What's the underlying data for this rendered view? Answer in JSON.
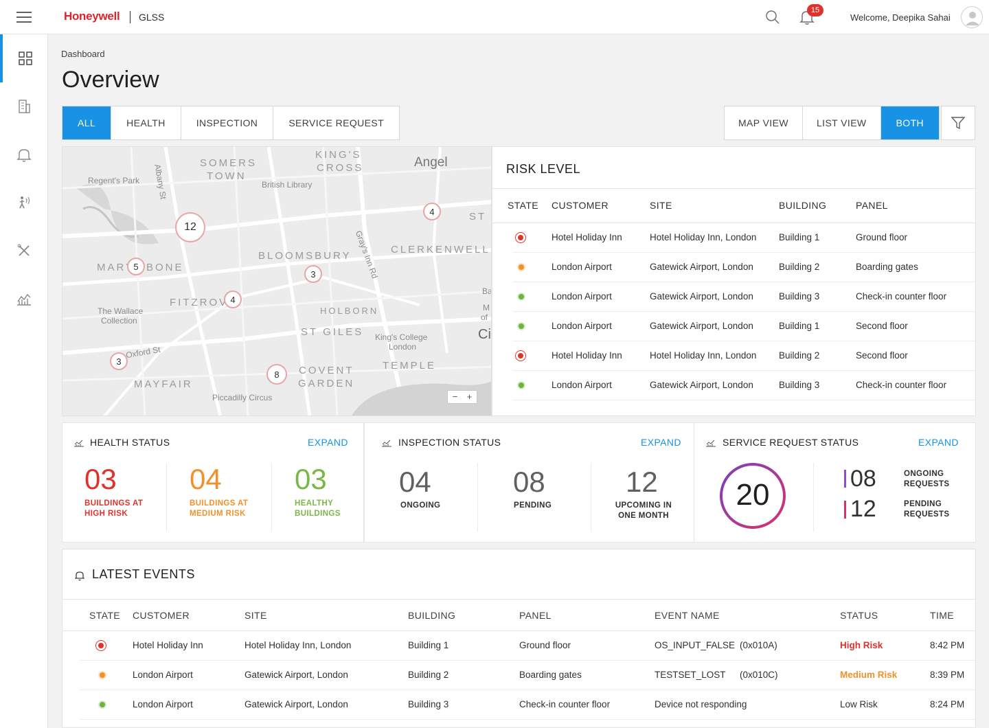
{
  "header": {
    "brand": "Honeywell",
    "app_name": "GLSS",
    "notification_count": "15",
    "welcome_text": "Welcome,  Deepika Sahai"
  },
  "sidebar": {
    "items": [
      {
        "icon": "dashboard-grid-icon",
        "active": true
      },
      {
        "icon": "building-icon",
        "active": false
      },
      {
        "icon": "bell-icon",
        "active": false
      },
      {
        "icon": "person-signal-icon",
        "active": false
      },
      {
        "icon": "tools-icon",
        "active": false
      },
      {
        "icon": "chart-icon",
        "active": false
      }
    ]
  },
  "breadcrumb": "Dashboard",
  "page_title": "Overview",
  "filter_tabs": [
    "ALL",
    "HEALTH",
    "INSPECTION",
    "SERVICE REQUEST"
  ],
  "view_tabs": [
    "MAP VIEW",
    "LIST VIEW",
    "BOTH"
  ],
  "map": {
    "labels": {
      "regents_park": "Regent's Park",
      "albany_st": "Albany St",
      "somers": "SOMERS",
      "town": "TOWN",
      "kings": "KING'S",
      "cross": "CROSS",
      "british_library": "British Library",
      "angel": "Angel",
      "st_l": "ST L",
      "mary": "MARY",
      "bone": "BONE",
      "bloomsbury": "BLOOMSBURY",
      "grays_inn": "Gray's Inn Rd",
      "clerkenwell": "CLERKENWELL",
      "wallace1": "The Wallace",
      "wallace2": "Collection",
      "fitzrovi": "FITZROVI",
      "holborn": "HOLBORN",
      "st_giles": "ST GILES",
      "kings_college1": "King's College",
      "kings_college2": "London",
      "oxford_st": "Oxford St",
      "mayfair": "MAYFAIR",
      "covent": "COVENT",
      "garden": "GARDEN",
      "temple": "TEMPLE",
      "piccadilly": "Piccadilly Circus",
      "ba": "Ba",
      "m": "M",
      "of": "of",
      "ci": "Ci"
    },
    "pins": [
      "12",
      "4",
      "5",
      "3",
      "4",
      "3",
      "8"
    ],
    "zoom_out": "−",
    "zoom_in": "+"
  },
  "risk_level": {
    "title": "RISK LEVEL",
    "columns": [
      "STATE",
      "CUSTOMER",
      "SITE",
      "BUILDING",
      "PANEL"
    ],
    "rows": [
      {
        "state": "high",
        "customer": "Hotel Holiday Inn",
        "site": "Hotel Holiday Inn, London",
        "building": "Building 1",
        "panel": "Ground floor"
      },
      {
        "state": "medium",
        "customer": "London Airport",
        "site": "Gatewick Airport, London",
        "building": "Building 2",
        "panel": "Boarding gates"
      },
      {
        "state": "low",
        "customer": "London Airport",
        "site": "Gatewick Airport, London",
        "building": "Building 3",
        "panel": "Check-in counter floor"
      },
      {
        "state": "low",
        "customer": "London Airport",
        "site": "Gatewick Airport, London",
        "building": "Building 1",
        "panel": "Second floor"
      },
      {
        "state": "high",
        "customer": "Hotel Holiday Inn",
        "site": "Hotel Holiday Inn, London",
        "building": "Building 2",
        "panel": "Second floor"
      },
      {
        "state": "low",
        "customer": "London Airport",
        "site": "Gatewick Airport, London",
        "building": "Building 3",
        "panel": "Check-in counter floor"
      }
    ]
  },
  "health_status": {
    "title": "HEALTH STATUS",
    "expand": "EXPAND",
    "high": {
      "value": "03",
      "line1": "BUILDINGS AT",
      "line2": "HIGH RISK"
    },
    "medium": {
      "value": "04",
      "line1": "BUILDINGS AT",
      "line2": "MEDIUM RISK"
    },
    "healthy": {
      "value": "03",
      "line1": "HEALTHY",
      "line2": "BUILDINGS"
    }
  },
  "inspection_status": {
    "title": "INSPECTION STATUS",
    "expand": "EXPAND",
    "ongoing": {
      "value": "04",
      "label": "ONGOING"
    },
    "pending": {
      "value": "08",
      "label": "PENDING"
    },
    "upcoming": {
      "value": "12",
      "line1": "UPCOMING IN",
      "line2": "ONE MONTH"
    }
  },
  "service_request_status": {
    "title": "SERVICE REQUEST STATUS",
    "expand": "EXPAND",
    "total": "20",
    "ongoing": {
      "value": "08",
      "line1": "ONGOING",
      "line2": "REQUESTS"
    },
    "pending": {
      "value": "12",
      "line1": "PENDING",
      "line2": "REQUESTS"
    }
  },
  "latest_events": {
    "title": "LATEST EVENTS",
    "columns": [
      "STATE",
      "CUSTOMER",
      "SITE",
      "BUILDING",
      "PANEL",
      "EVENT NAME",
      "STATUS",
      "TIME"
    ],
    "rows": [
      {
        "state": "high",
        "customer": "Hotel Holiday Inn",
        "site": "Hotel Holiday Inn, London",
        "building": "Building 1",
        "panel": "Ground floor",
        "event": "OS_INPUT_FALSE",
        "code": "(0x010A)",
        "status": "High Risk",
        "time": "8:42 PM"
      },
      {
        "state": "medium",
        "customer": "London Airport",
        "site": "Gatewick Airport, London",
        "building": "Building 2",
        "panel": "Boarding gates",
        "event": "TESTSET_LOST",
        "code": "(0x010C)",
        "status": "Medium Risk",
        "time": "8:39 PM"
      },
      {
        "state": "low",
        "customer": "London Airport",
        "site": "Gatewick Airport, London",
        "building": "Building 3",
        "panel": "Check-in counter floor",
        "event": "Device not responding",
        "code": "",
        "status": "Low Risk",
        "time": "8:24 PM"
      }
    ]
  },
  "colors": {
    "accent": "#1792e5",
    "brand_red": "#d9262d",
    "high": "#e0322c",
    "medium": "#f0912d",
    "low": "#6cb33f"
  }
}
